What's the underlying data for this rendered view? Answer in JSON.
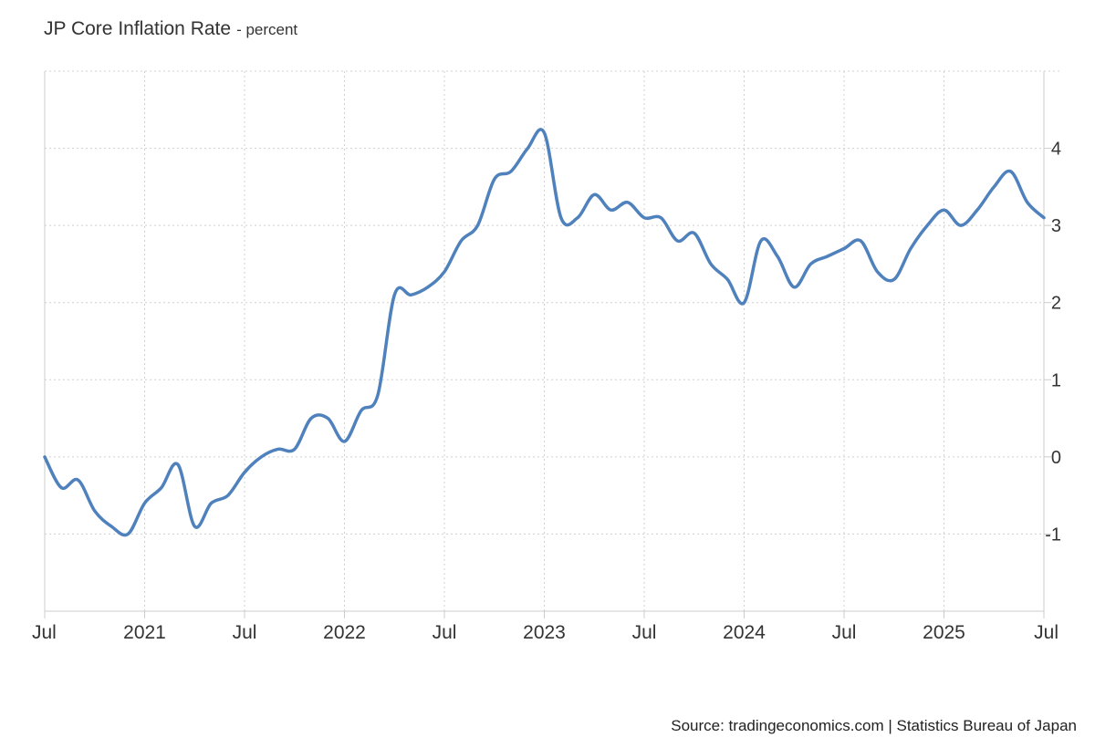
{
  "chart_data": {
    "type": "line",
    "title": "JP Core Inflation Rate",
    "subtitle": "- percent",
    "source": "Source: tradingeconomics.com | Statistics Bureau of Japan",
    "xlabel": "",
    "ylabel": "",
    "grid": true,
    "line_color": "#4f81bd",
    "x_range": [
      "2020-07",
      "2025-07"
    ],
    "ylim": [
      -2,
      5
    ],
    "y_ticks": [
      {
        "value": -1,
        "label": "-1"
      },
      {
        "value": 0,
        "label": "0"
      },
      {
        "value": 1,
        "label": "1"
      },
      {
        "value": 2,
        "label": "2"
      },
      {
        "value": 3,
        "label": "3"
      },
      {
        "value": 4,
        "label": "4"
      }
    ],
    "x_ticks": [
      {
        "value": "2020-07",
        "label": "Jul"
      },
      {
        "value": "2021-01",
        "label": "2021"
      },
      {
        "value": "2021-07",
        "label": "Jul"
      },
      {
        "value": "2022-01",
        "label": "2022"
      },
      {
        "value": "2022-07",
        "label": "Jul"
      },
      {
        "value": "2023-01",
        "label": "2023"
      },
      {
        "value": "2023-07",
        "label": "Jul"
      },
      {
        "value": "2024-01",
        "label": "2024"
      },
      {
        "value": "2024-07",
        "label": "Jul"
      },
      {
        "value": "2025-01",
        "label": "2025"
      },
      {
        "value": "2025-07",
        "label": "Jul"
      }
    ],
    "series": [
      {
        "x": [
          "2020-07",
          "2020-08",
          "2020-09",
          "2020-10",
          "2020-11",
          "2020-12",
          "2021-01",
          "2021-02",
          "2021-03",
          "2021-04",
          "2021-05",
          "2021-06",
          "2021-07",
          "2021-08",
          "2021-09",
          "2021-10",
          "2021-11",
          "2021-12",
          "2022-01",
          "2022-02",
          "2022-03",
          "2022-04",
          "2022-05",
          "2022-06",
          "2022-07",
          "2022-08",
          "2022-09",
          "2022-10",
          "2022-11",
          "2022-12",
          "2023-01",
          "2023-02",
          "2023-03",
          "2023-04",
          "2023-05",
          "2023-06",
          "2023-07",
          "2023-08",
          "2023-09",
          "2023-10",
          "2023-11",
          "2023-12",
          "2024-01",
          "2024-02",
          "2024-03",
          "2024-04",
          "2024-05",
          "2024-06",
          "2024-07",
          "2024-08",
          "2024-09",
          "2024-10",
          "2024-11",
          "2024-12",
          "2025-01",
          "2025-02",
          "2025-03",
          "2025-04",
          "2025-05",
          "2025-06",
          "2025-07"
        ],
        "values": [
          0.0,
          -0.4,
          -0.3,
          -0.7,
          -0.9,
          -1.0,
          -0.6,
          -0.4,
          -0.1,
          -0.9,
          -0.6,
          -0.5,
          -0.2,
          0.0,
          0.1,
          0.1,
          0.5,
          0.5,
          0.2,
          0.6,
          0.8,
          2.1,
          2.1,
          2.2,
          2.4,
          2.8,
          3.0,
          3.6,
          3.7,
          4.0,
          4.2,
          3.1,
          3.1,
          3.4,
          3.2,
          3.3,
          3.1,
          3.1,
          2.8,
          2.9,
          2.5,
          2.3,
          2.0,
          2.8,
          2.6,
          2.2,
          2.5,
          2.6,
          2.7,
          2.8,
          2.4,
          2.3,
          2.7,
          3.0,
          3.2,
          3.0,
          3.2,
          3.5,
          3.7,
          3.3,
          3.1
        ]
      }
    ]
  }
}
